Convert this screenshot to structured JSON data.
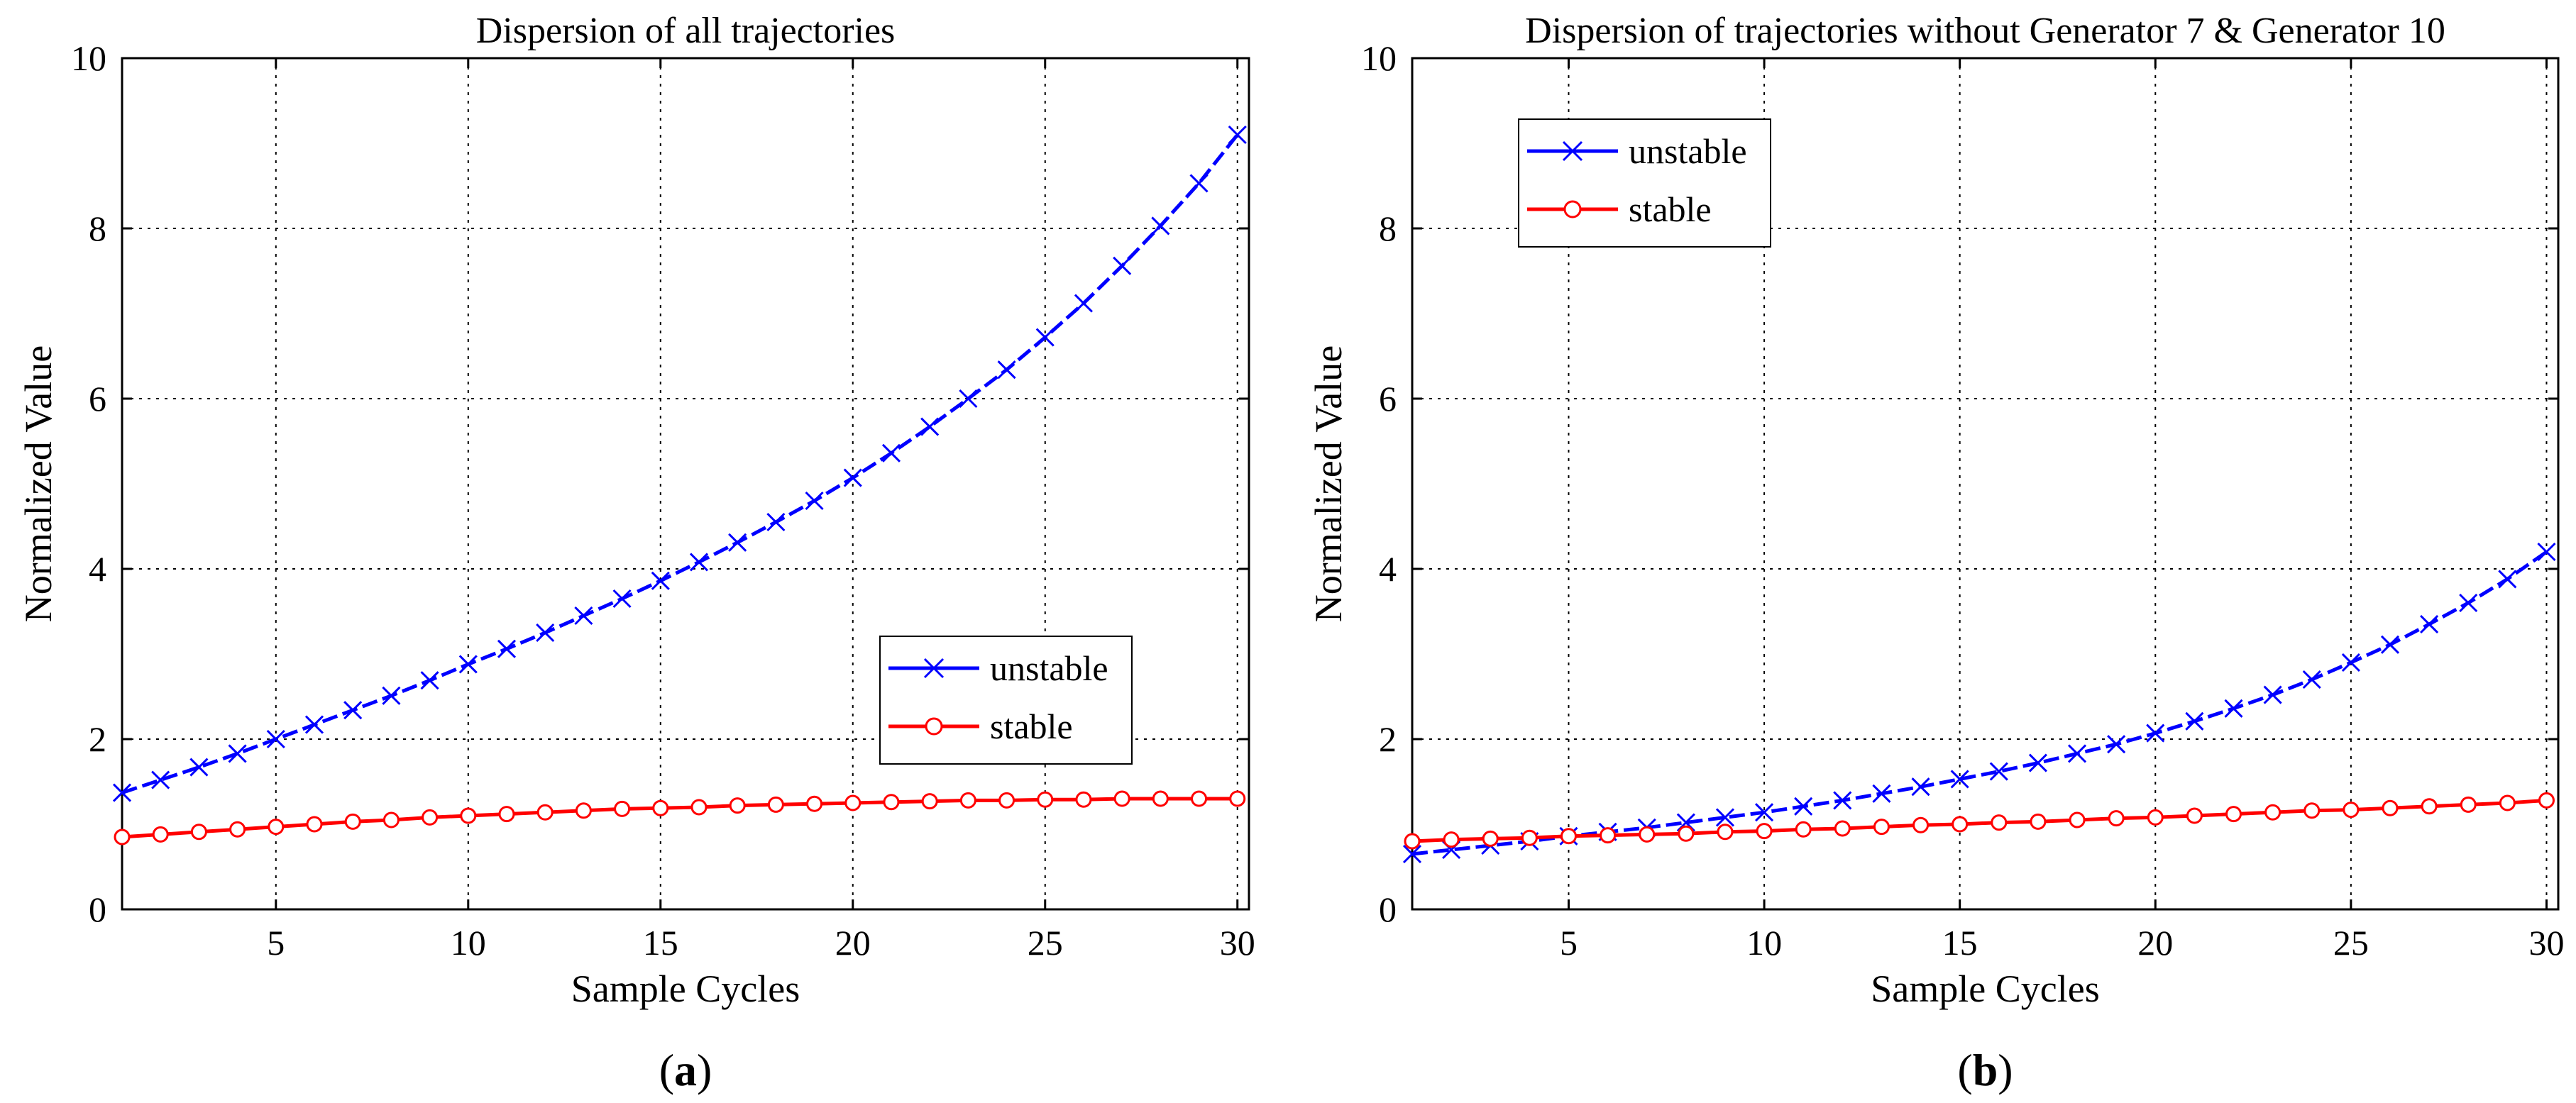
{
  "chart_data": [
    {
      "type": "line",
      "panel_label": "a",
      "title": "Dispersion of all trajectories",
      "xlabel": "Sample Cycles",
      "ylabel": "Normalized Value",
      "xlim": [
        1,
        30.3
      ],
      "ylim": [
        0,
        10
      ],
      "xticks": [
        5,
        10,
        15,
        20,
        25,
        30
      ],
      "yticks": [
        0,
        2,
        4,
        6,
        8,
        10
      ],
      "grid": true,
      "legend_position": "right-middle",
      "x": [
        1,
        2,
        3,
        4,
        5,
        6,
        7,
        8,
        9,
        10,
        11,
        12,
        13,
        14,
        15,
        16,
        17,
        18,
        19,
        20,
        21,
        22,
        23,
        24,
        25,
        26,
        27,
        28,
        29,
        30
      ],
      "series": [
        {
          "name": "unstable",
          "color": "#0000ff",
          "marker": "x",
          "values": [
            1.37,
            1.52,
            1.67,
            1.83,
            2.0,
            2.17,
            2.34,
            2.51,
            2.69,
            2.88,
            3.06,
            3.25,
            3.45,
            3.65,
            3.86,
            4.08,
            4.31,
            4.55,
            4.8,
            5.07,
            5.36,
            5.67,
            6.0,
            6.34,
            6.72,
            7.12,
            7.56,
            8.03,
            8.53,
            9.1
          ]
        },
        {
          "name": "stable",
          "color": "#ff0000",
          "marker": "o",
          "values": [
            0.85,
            0.88,
            0.91,
            0.94,
            0.97,
            1.0,
            1.03,
            1.05,
            1.08,
            1.1,
            1.12,
            1.14,
            1.16,
            1.18,
            1.19,
            1.2,
            1.22,
            1.23,
            1.24,
            1.25,
            1.26,
            1.27,
            1.28,
            1.28,
            1.29,
            1.29,
            1.3,
            1.3,
            1.3,
            1.3
          ]
        }
      ]
    },
    {
      "type": "line",
      "panel_label": "b",
      "title": "Dispersion of trajectories without Generator 7 & Generator 10",
      "xlabel": "Sample Cycles",
      "ylabel": "Normalized Value",
      "xlim": [
        1,
        30.3
      ],
      "ylim": [
        0,
        10
      ],
      "xticks": [
        5,
        10,
        15,
        20,
        25,
        30
      ],
      "yticks": [
        0,
        2,
        4,
        6,
        8,
        10
      ],
      "grid": true,
      "legend_position": "top-left",
      "x": [
        1,
        2,
        3,
        4,
        5,
        6,
        7,
        8,
        9,
        10,
        11,
        12,
        13,
        14,
        15,
        16,
        17,
        18,
        19,
        20,
        21,
        22,
        23,
        24,
        25,
        26,
        27,
        28,
        29,
        30
      ],
      "series": [
        {
          "name": "unstable",
          "color": "#0000ff",
          "marker": "x",
          "values": [
            0.65,
            0.7,
            0.75,
            0.8,
            0.86,
            0.91,
            0.96,
            1.02,
            1.08,
            1.14,
            1.21,
            1.28,
            1.36,
            1.44,
            1.53,
            1.62,
            1.72,
            1.83,
            1.94,
            2.07,
            2.21,
            2.36,
            2.52,
            2.7,
            2.9,
            3.11,
            3.35,
            3.6,
            3.88,
            4.2
          ]
        },
        {
          "name": "stable",
          "color": "#ff0000",
          "marker": "o",
          "values": [
            0.8,
            0.82,
            0.83,
            0.84,
            0.86,
            0.87,
            0.88,
            0.89,
            0.91,
            0.92,
            0.94,
            0.95,
            0.97,
            0.99,
            1.0,
            1.02,
            1.03,
            1.05,
            1.07,
            1.08,
            1.1,
            1.12,
            1.14,
            1.16,
            1.17,
            1.19,
            1.21,
            1.23,
            1.25,
            1.28
          ]
        }
      ]
    }
  ]
}
